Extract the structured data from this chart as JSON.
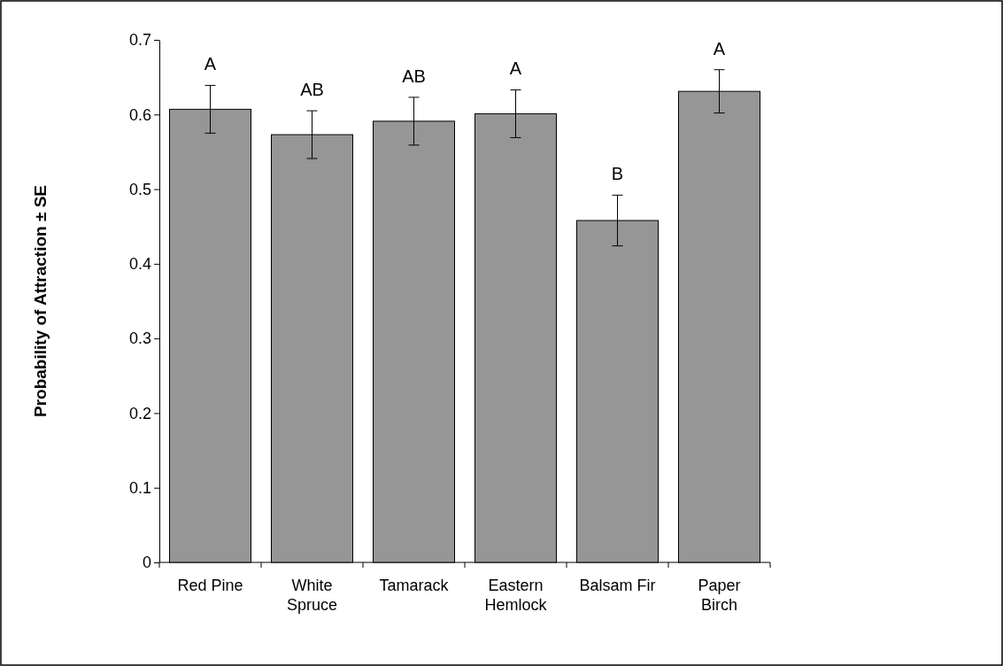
{
  "chart_data": {
    "type": "bar",
    "ylabel": "Probability of Attraction ± SE",
    "categories": [
      "Red Pine",
      "White\nSpruce",
      "Tamarack",
      "Eastern\nHemlock",
      "Balsam Fir",
      "Paper\nBirch"
    ],
    "values": [
      0.607,
      0.573,
      0.591,
      0.601,
      0.458,
      0.631
    ],
    "errors": [
      0.032,
      0.032,
      0.032,
      0.032,
      0.034,
      0.029
    ],
    "color": "#969696",
    "ylim": [
      0,
      0.7
    ],
    "yticks": [
      0,
      0.1,
      0.2,
      0.3,
      0.4,
      0.5,
      0.6,
      0.7
    ],
    "grid": false,
    "annotations": [
      "A",
      "AB",
      "AB",
      "A",
      "B",
      "A"
    ]
  }
}
